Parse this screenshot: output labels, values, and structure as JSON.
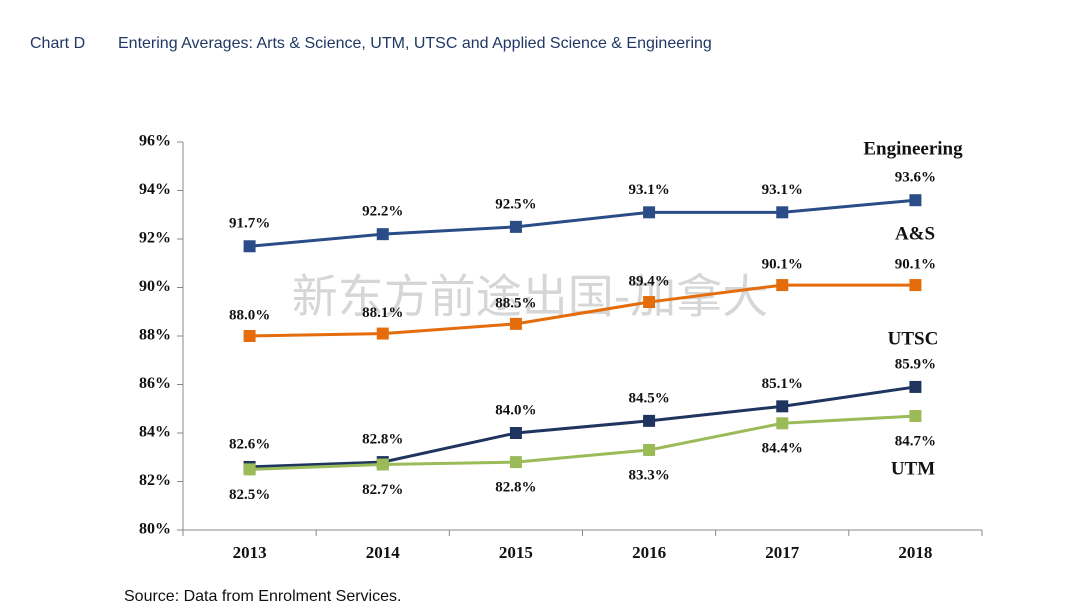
{
  "chart_data": {
    "type": "line",
    "chart_label": "Chart D",
    "title": "Entering Averages: Arts & Science, UTM, UTSC and Applied Science & Engineering",
    "source": "Source: Data from Enrolment Services.",
    "watermark": "新东方前途出国-加拿大",
    "categories": [
      "2013",
      "2014",
      "2015",
      "2016",
      "2017",
      "2018"
    ],
    "ylim": [
      80,
      96
    ],
    "yticks": [
      {
        "value": 80,
        "label": "80%"
      },
      {
        "value": 82,
        "label": "82%"
      },
      {
        "value": 84,
        "label": "84%"
      },
      {
        "value": 86,
        "label": "86%"
      },
      {
        "value": 88,
        "label": "88%"
      },
      {
        "value": 90,
        "label": "90%"
      },
      {
        "value": 92,
        "label": "92%"
      },
      {
        "value": 94,
        "label": "94%"
      },
      {
        "value": 96,
        "label": "96%"
      }
    ],
    "grid": false,
    "series": [
      {
        "name": "Engineering",
        "color": "#2a4d87",
        "values": [
          91.7,
          92.2,
          92.5,
          93.1,
          93.1,
          93.6
        ],
        "value_labels": [
          "91.7%",
          "92.2%",
          "92.5%",
          "93.1%",
          "93.1%",
          "93.6%"
        ]
      },
      {
        "name": "A&S",
        "color": "#e46c0a",
        "values": [
          88.0,
          88.1,
          88.5,
          89.4,
          90.1,
          90.1
        ],
        "value_labels": [
          "88.0%",
          "88.1%",
          "88.5%",
          "89.4%",
          "90.1%",
          "90.1%"
        ]
      },
      {
        "name": "UTSC",
        "color": "#1f3560",
        "values": [
          82.6,
          82.8,
          84.0,
          84.5,
          85.1,
          85.9
        ],
        "value_labels": [
          "82.6%",
          "82.8%",
          "84.0%",
          "84.5%",
          "85.1%",
          "85.9%"
        ]
      },
      {
        "name": "UTM",
        "color": "#9bbb59",
        "values": [
          82.5,
          82.7,
          82.8,
          83.3,
          84.4,
          84.7
        ],
        "value_labels": [
          "82.5%",
          "82.7%",
          "82.8%",
          "83.3%",
          "84.4%",
          "84.7%"
        ]
      }
    ]
  }
}
